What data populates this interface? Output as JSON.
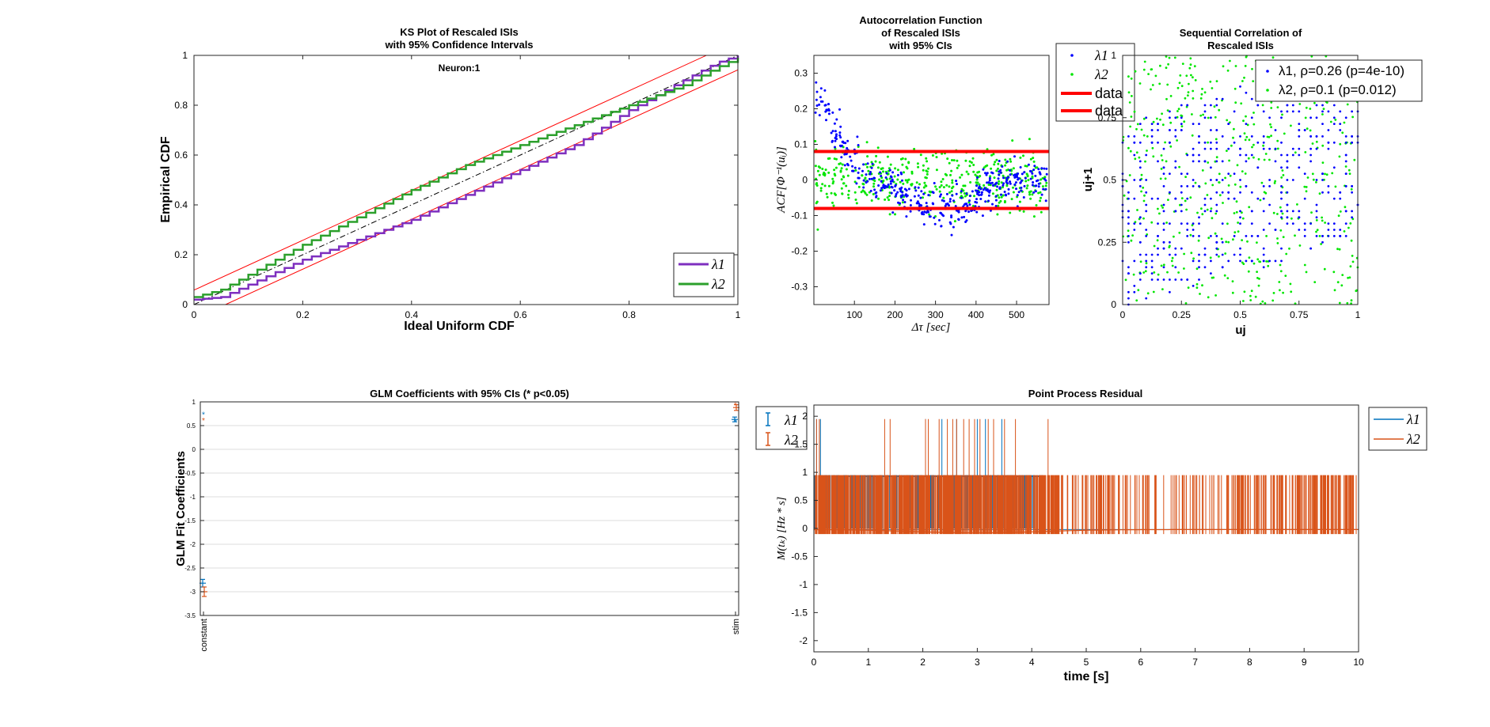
{
  "figure": {
    "background": "#ffffff"
  },
  "chart_data": [
    {
      "id": "ks",
      "type": "line",
      "title": [
        "KS Plot of Rescaled ISIs",
        "with 95% Confidence Intervals"
      ],
      "annotation": "Neuron:1",
      "xlabel": "Ideal Uniform CDF",
      "ylabel": "Empirical CDF",
      "xlim": [
        0,
        1
      ],
      "ylim": [
        0,
        1
      ],
      "xticks": [
        "0",
        "0.2",
        "0.4",
        "0.6",
        "0.8",
        "1"
      ],
      "yticks": [
        "0",
        "0.2",
        "0.4",
        "0.6",
        "0.8",
        "1"
      ],
      "legend_position": "bottom-right",
      "legend": [
        "λ1",
        "λ2"
      ],
      "series": [
        {
          "name": "λ1",
          "color": "#7e2fbf",
          "x": [
            0,
            0.05,
            0.1,
            0.2,
            0.3,
            0.4,
            0.5,
            0.6,
            0.7,
            0.8,
            0.9,
            0.96,
            1
          ],
          "y": [
            0.02,
            0.03,
            0.08,
            0.18,
            0.26,
            0.34,
            0.44,
            0.54,
            0.64,
            0.78,
            0.9,
            0.97,
            1.0
          ]
        },
        {
          "name": "λ2",
          "color": "#2ca02c",
          "x": [
            0,
            0.05,
            0.1,
            0.2,
            0.3,
            0.4,
            0.5,
            0.6,
            0.7,
            0.8,
            0.9,
            0.96,
            1
          ],
          "y": [
            0.03,
            0.06,
            0.12,
            0.24,
            0.35,
            0.46,
            0.56,
            0.64,
            0.72,
            0.8,
            0.88,
            0.95,
            0.99
          ]
        }
      ],
      "reference_line": {
        "x": [
          0,
          1
        ],
        "y": [
          0,
          1
        ],
        "style": "dash-dot",
        "color": "#000000"
      },
      "confidence_bounds": {
        "offset": 0.058,
        "color": "#ff0000"
      }
    },
    {
      "id": "acf",
      "type": "scatter",
      "title": [
        "Autocorrelation Function",
        "of Rescaled ISIs",
        "with 95% CIs"
      ],
      "xlabel": "Δτ [sec]",
      "ylabel": "ACF[Φ⁻¹(uᵢ)]",
      "xlim": [
        0,
        580
      ],
      "ylim": [
        -0.35,
        0.35
      ],
      "xticks": [
        100,
        200,
        300,
        400,
        500
      ],
      "yticks": [
        -0.3,
        -0.2,
        -0.1,
        0,
        0.1,
        0.2,
        0.3
      ],
      "xtick_labels": [
        "100",
        "200",
        "300",
        "400",
        "500"
      ],
      "ytick_labels": [
        "-0.3",
        "-0.2",
        "-0.1",
        "0",
        "0.1",
        "0.2",
        "0.3"
      ],
      "legend": [
        "λ1",
        "λ2",
        "data",
        "data"
      ],
      "series": [
        {
          "name": "λ1",
          "color": "#0000ff",
          "trend_x": [
            5,
            30,
            60,
            90,
            130,
            200,
            300,
            380,
            430,
            500,
            580
          ],
          "trend_y": [
            0.24,
            0.2,
            0.12,
            0.05,
            0.01,
            -0.04,
            -0.08,
            -0.07,
            -0.02,
            0.0,
            0.0
          ],
          "spread": 0.028,
          "n_points": 420
        },
        {
          "name": "λ2",
          "color": "#00e600",
          "trend_x": [
            0,
            580
          ],
          "trend_y": [
            0.0,
            0.0
          ],
          "spread": 0.04,
          "n_points": 420
        }
      ],
      "confidence_lines": [
        0.08,
        -0.08
      ],
      "confidence_color": "#ff0000"
    },
    {
      "id": "seq",
      "type": "scatter",
      "title": [
        "Sequential Correlation of",
        "Rescaled ISIs"
      ],
      "xlabel": "uj",
      "ylabel": "uj+1",
      "xlim": [
        0,
        1
      ],
      "ylim": [
        0,
        1
      ],
      "xticks": [
        0,
        0.25,
        0.5,
        0.75,
        1
      ],
      "xtick_labels": [
        "0",
        "0.25",
        "0.5",
        "0.75",
        "1"
      ],
      "yticks": [
        0,
        0.25,
        0.5,
        0.75,
        1
      ],
      "ytick_labels": [
        "0",
        "0.25",
        "0.5",
        "0.75",
        "1"
      ],
      "legend": [
        "λ1, ρ=0.26 (p=4e-10)",
        "λ2, ρ=0.1 (p=0.012)"
      ],
      "series": [
        {
          "name": "λ1",
          "color": "#0000ff",
          "n_points": 500,
          "rho": 0.26,
          "p": "4e-10"
        },
        {
          "name": "λ2",
          "color": "#00e600",
          "n_points": 500,
          "rho": 0.1,
          "p": "0.012"
        }
      ]
    },
    {
      "id": "glm",
      "type": "scatter",
      "title": "GLM Coefficients with 95% CIs (* p<0.05)",
      "ylabel": "GLM Fit Coefficients",
      "categories": [
        "constant",
        "stim"
      ],
      "ylim": [
        -3.5,
        1
      ],
      "yticks": [
        -3.5,
        -3,
        -2.5,
        -2,
        -1.5,
        -1,
        -0.5,
        0,
        0.5,
        1
      ],
      "ytick_labels": [
        "-3.5",
        "-3",
        "-2.5",
        "-2",
        "-1.5",
        "-1",
        "-0.5",
        "0",
        "0.5",
        "1"
      ],
      "legend": [
        "λ1",
        "λ2"
      ],
      "series": [
        {
          "name": "λ1",
          "color": "#0072bd",
          "values": [
            -2.82,
            0.63
          ],
          "err": [
            0.08,
            0.05
          ]
        },
        {
          "name": "λ2",
          "color": "#d95319",
          "values": [
            -3.0,
            0.88
          ],
          "err": [
            0.1,
            0.06
          ]
        }
      ],
      "sig_markers": [
        {
          "series": "λ1",
          "category": "constant",
          "value": 0.74
        },
        {
          "series": "λ2",
          "category": "constant",
          "value": 0.62
        },
        {
          "series": "λ1",
          "category": "stim",
          "value": 0.58
        },
        {
          "series": "λ2",
          "category": "stim",
          "value": 0.94
        }
      ]
    },
    {
      "id": "ppr",
      "type": "line",
      "title": "Point Process Residual",
      "xlabel": "time [s]",
      "ylabel": "M(tₖ) [Hz * s]",
      "xlim": [
        0,
        10
      ],
      "ylim": [
        -2.2,
        2.2
      ],
      "xticks": [
        0,
        1,
        2,
        3,
        4,
        5,
        6,
        7,
        8,
        9,
        10
      ],
      "xtick_labels": [
        "0",
        "1",
        "2",
        "3",
        "4",
        "5",
        "6",
        "7",
        "8",
        "9",
        "10"
      ],
      "yticks": [
        -2,
        -1.5,
        -1,
        -0.5,
        0,
        0.5,
        1,
        1.5,
        2
      ],
      "ytick_labels": [
        "-2",
        "-1.5",
        "-1",
        "-0.5",
        "0",
        "0.5",
        "1",
        "1.5",
        "2"
      ],
      "legend": [
        "λ1",
        "λ2"
      ],
      "series": [
        {
          "name": "λ1",
          "color": "#0072bd",
          "spike_height": 0.95,
          "tall_spikes": [
            0.05,
            0.12,
            2.05,
            2.35,
            2.62,
            3.0,
            3.15,
            3.45
          ]
        },
        {
          "name": "λ2",
          "color": "#d95319",
          "spike_height": 0.95,
          "tall_height": 1.95,
          "tall_spikes": [
            0.05,
            0.1,
            1.3,
            1.4,
            2.05,
            2.1,
            2.3,
            2.45,
            2.55,
            2.62,
            2.75,
            2.85,
            2.95,
            3.05,
            3.2,
            3.3,
            3.5,
            3.7,
            4.3
          ]
        }
      ]
    }
  ]
}
